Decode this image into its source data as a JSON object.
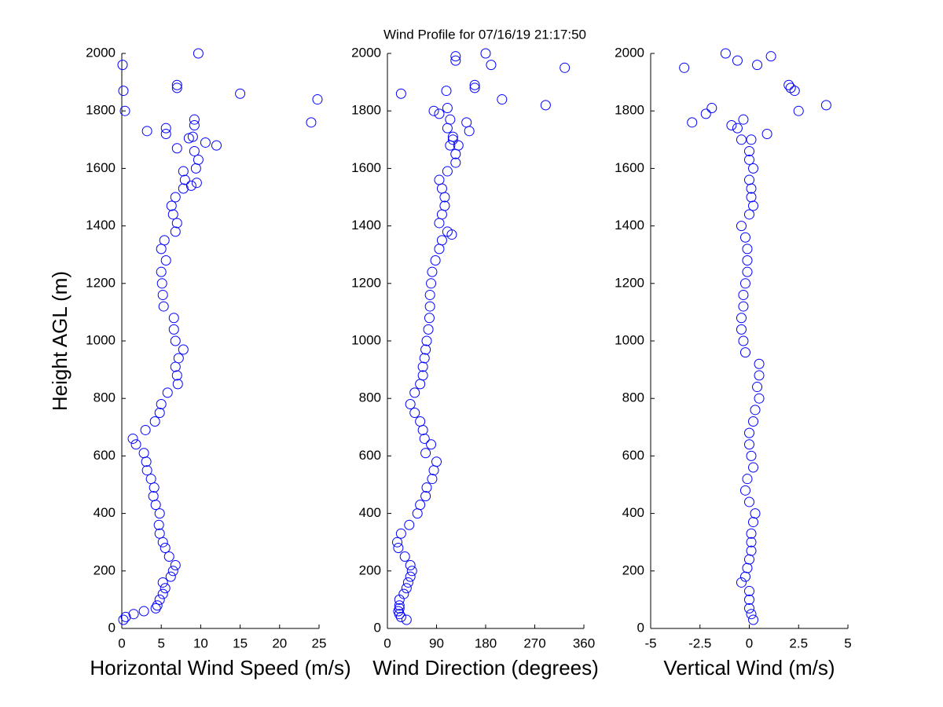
{
  "chart_data": [
    {
      "type": "scatter",
      "title": "Wind Profile for  07/16/19 21:17:50",
      "ylabel": "Height AGL (m)",
      "xlabel": "Horizontal Wind Speed (m/s)",
      "color": "#0000ff",
      "xlim": [
        0,
        25
      ],
      "xticks": [
        0,
        5,
        10,
        15,
        20,
        25
      ],
      "ylim": [
        0,
        2000
      ],
      "yticks": [
        0,
        200,
        400,
        600,
        800,
        1000,
        1200,
        1400,
        1600,
        1800,
        2000
      ],
      "x": [
        0.2,
        0.5,
        1.5,
        2.8,
        4.3,
        4.5,
        4.8,
        5.2,
        5.5,
        5.2,
        6.2,
        6.5,
        6.8,
        6.0,
        5.5,
        5.2,
        4.8,
        4.7,
        4.8,
        4.3,
        4.0,
        4.1,
        3.7,
        3.2,
        3.1,
        2.8,
        1.8,
        1.4,
        3.0,
        4.2,
        4.8,
        5.0,
        5.8,
        7.1,
        7.0,
        6.8,
        7.2,
        7.8,
        6.8,
        6.6,
        6.6,
        5.3,
        5.2,
        5.1,
        5.0,
        5.6,
        5.0,
        5.4,
        6.8,
        7.0,
        6.5,
        6.3,
        6.8,
        7.8,
        8.0,
        7.8,
        9.5,
        8.8,
        9.4,
        9.7,
        9.2,
        12.0,
        10.6,
        8.5,
        9.0,
        5.6,
        7.0,
        3.2,
        5.6,
        9.2,
        9.2,
        24.0,
        0.4,
        24.8,
        15.0,
        0.2,
        7.0,
        7.0,
        0.1,
        9.7
      ],
      "values": [
        30,
        40,
        50,
        60,
        70,
        80,
        100,
        120,
        140,
        160,
        180,
        200,
        220,
        250,
        280,
        300,
        330,
        360,
        400,
        430,
        460,
        490,
        520,
        550,
        580,
        610,
        640,
        660,
        690,
        720,
        750,
        780,
        820,
        850,
        880,
        910,
        940,
        970,
        1000,
        1040,
        1080,
        1120,
        1160,
        1200,
        1240,
        1280,
        1320,
        1350,
        1380,
        1410,
        1440,
        1470,
        1500,
        1530,
        1560,
        1590,
        1550,
        1540,
        1600,
        1630,
        1660,
        1680,
        1690,
        1705,
        1710,
        1720,
        1670,
        1730,
        1740,
        1750,
        1770,
        1760,
        1800,
        1840,
        1860,
        1870,
        1880,
        1890,
        1960,
        2000
      ]
    },
    {
      "type": "scatter",
      "xlabel": "Wind Direction (degrees)",
      "color": "#0000ff",
      "xlim": [
        0,
        360
      ],
      "xticks": [
        0,
        90,
        180,
        270,
        360
      ],
      "ylim": [
        0,
        2000
      ],
      "yticks": [
        0,
        200,
        400,
        600,
        800,
        1000,
        1200,
        1400,
        1600,
        1800,
        2000
      ],
      "x": [
        35,
        25,
        22,
        20,
        22,
        22,
        22,
        30,
        35,
        38,
        42,
        45,
        42,
        32,
        20,
        18,
        25,
        40,
        55,
        60,
        70,
        72,
        82,
        85,
        90,
        70,
        80,
        68,
        65,
        60,
        50,
        42,
        50,
        60,
        65,
        65,
        68,
        70,
        72,
        75,
        77,
        78,
        78,
        80,
        82,
        88,
        95,
        100,
        110,
        118,
        95,
        100,
        105,
        105,
        100,
        95,
        110,
        125,
        125,
        115,
        120,
        110,
        115,
        95,
        25,
        85,
        110,
        145,
        150,
        130,
        120,
        290,
        325,
        210,
        180,
        190,
        125,
        125,
        160,
        160,
        108
      ],
      "values": [
        30,
        40,
        50,
        60,
        70,
        80,
        100,
        120,
        140,
        160,
        180,
        200,
        220,
        250,
        280,
        300,
        330,
        360,
        400,
        430,
        460,
        490,
        520,
        550,
        580,
        610,
        640,
        660,
        690,
        720,
        750,
        780,
        820,
        850,
        880,
        910,
        940,
        970,
        1000,
        1040,
        1080,
        1120,
        1160,
        1200,
        1240,
        1280,
        1320,
        1350,
        1380,
        1370,
        1410,
        1440,
        1470,
        1500,
        1530,
        1560,
        1590,
        1620,
        1650,
        1680,
        1710,
        1740,
        1770,
        1790,
        1860,
        1800,
        1810,
        1760,
        1730,
        1680,
        1700,
        1820,
        1950,
        1840,
        2000,
        1960,
        1975,
        1990,
        1880,
        1890,
        1870
      ]
    },
    {
      "type": "scatter",
      "xlabel": "Vertical Wind (m/s)",
      "color": "#0000ff",
      "xlim": [
        -5,
        5
      ],
      "xticks": [
        -5,
        -2.5,
        0,
        2.5,
        5
      ],
      "ylim": [
        0,
        2000
      ],
      "yticks": [
        0,
        200,
        400,
        600,
        800,
        1000,
        1200,
        1400,
        1600,
        1800,
        2000
      ],
      "x": [
        0.2,
        0.1,
        0,
        0,
        0,
        -0.4,
        -0.2,
        -0.1,
        0,
        0.1,
        0.1,
        0.1,
        0.2,
        0.3,
        0,
        -0.2,
        -0.1,
        0.2,
        0.1,
        0,
        0,
        0.2,
        0.3,
        0.5,
        0.4,
        0.5,
        0.5,
        -0.2,
        -0.3,
        -0.4,
        -0.4,
        -0.3,
        -0.3,
        -0.2,
        -0.1,
        -0.1,
        -0.1,
        -0.2,
        -0.4,
        0,
        0.2,
        0.1,
        0.1,
        0,
        0.2,
        0,
        0,
        0.1,
        -0.9,
        -0.6,
        -0.4,
        -0.3,
        0.9,
        -2.9,
        -2.2,
        -1.9,
        2.5,
        2.3,
        2.1,
        2.0,
        3.9,
        -3.3,
        -1.2,
        -0.6,
        0.4,
        1.1
      ],
      "values": [
        30,
        50,
        70,
        100,
        130,
        160,
        180,
        210,
        240,
        270,
        300,
        330,
        370,
        400,
        440,
        480,
        520,
        560,
        600,
        640,
        680,
        720,
        760,
        800,
        840,
        880,
        920,
        960,
        1000,
        1040,
        1080,
        1120,
        1160,
        1200,
        1240,
        1280,
        1320,
        1360,
        1400,
        1440,
        1470,
        1500,
        1530,
        1560,
        1600,
        1630,
        1660,
        1700,
        1750,
        1740,
        1700,
        1770,
        1720,
        1760,
        1790,
        1810,
        1800,
        1870,
        1880,
        1890,
        1820,
        1950,
        2000,
        1975,
        1960,
        1990
      ]
    }
  ]
}
